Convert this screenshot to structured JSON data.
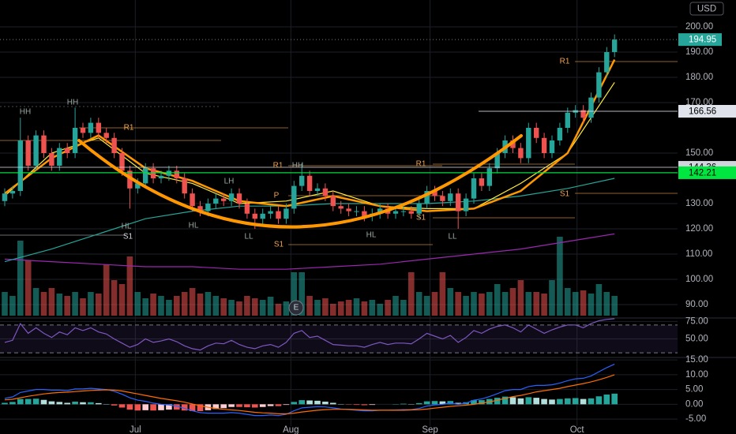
{
  "chart_data": {
    "type": "candlestick",
    "currency": "USD",
    "open": [
      131,
      134,
      135,
      155,
      145,
      157,
      150,
      145,
      152,
      150,
      160,
      158,
      162,
      158,
      156,
      150,
      143,
      136,
      138,
      144,
      140,
      141,
      143,
      140,
      134,
      129,
      127,
      130,
      132,
      131,
      134,
      130,
      126,
      124,
      126,
      127,
      124,
      128,
      137,
      141,
      135,
      136,
      133,
      129,
      128,
      127,
      127,
      125,
      126,
      128,
      126,
      127,
      127,
      126,
      130,
      135,
      133,
      131,
      134,
      127,
      132,
      140,
      137,
      144,
      150,
      155,
      152,
      148,
      160,
      156,
      150,
      155,
      160,
      166,
      167,
      164,
      172,
      182,
      190
    ],
    "high": [
      136,
      137,
      164,
      157,
      159,
      159,
      152,
      154,
      154,
      168,
      162,
      164,
      164,
      160,
      158,
      152,
      145,
      140,
      146,
      146,
      143,
      145,
      145,
      142,
      136,
      131,
      132,
      134,
      134,
      136,
      136,
      132,
      128,
      128,
      129,
      129,
      130,
      139,
      146,
      143,
      138,
      138,
      135,
      131,
      130,
      129,
      129,
      128,
      130,
      130,
      129,
      129,
      129,
      132,
      137,
      137,
      135,
      136,
      136,
      134,
      142,
      142,
      146,
      152,
      157,
      157,
      154,
      162,
      162,
      158,
      157,
      162,
      168,
      169,
      169,
      174,
      184,
      192,
      197
    ],
    "low": [
      129,
      132,
      133,
      143,
      143,
      148,
      143,
      143,
      148,
      148,
      156,
      156,
      156,
      154,
      148,
      141,
      128,
      134,
      136,
      138,
      138,
      139,
      138,
      132,
      127,
      125,
      125,
      128,
      129,
      129,
      128,
      124,
      120,
      122,
      124,
      122,
      122,
      126,
      135,
      133,
      133,
      131,
      127,
      126,
      125,
      125,
      123,
      123,
      124,
      124,
      124,
      125,
      124,
      124,
      128,
      131,
      129,
      129,
      120,
      125,
      130,
      135,
      135,
      142,
      148,
      150,
      146,
      146,
      154,
      148,
      148,
      153,
      158,
      164,
      162,
      162,
      170,
      180,
      188
    ],
    "close": [
      134,
      135,
      155,
      145,
      157,
      150,
      145,
      152,
      150,
      160,
      158,
      162,
      158,
      156,
      150,
      143,
      136,
      138,
      144,
      140,
      141,
      143,
      140,
      134,
      129,
      127,
      130,
      132,
      131,
      134,
      130,
      126,
      124,
      126,
      127,
      124,
      128,
      137,
      141,
      135,
      136,
      133,
      129,
      128,
      127,
      127,
      125,
      126,
      128,
      126,
      127,
      127,
      126,
      130,
      135,
      133,
      131,
      134,
      127,
      132,
      140,
      137,
      144,
      150,
      155,
      152,
      148,
      160,
      156,
      150,
      155,
      160,
      166,
      167,
      164,
      172,
      182,
      190,
      194.95
    ],
    "volume": [
      30,
      25,
      95,
      70,
      35,
      30,
      35,
      28,
      25,
      30,
      22,
      30,
      28,
      65,
      45,
      40,
      75,
      30,
      22,
      28,
      25,
      20,
      25,
      30,
      35,
      28,
      30,
      25,
      22,
      20,
      18,
      25,
      22,
      20,
      24,
      15,
      18,
      55,
      55,
      25,
      20,
      22,
      15,
      18,
      20,
      22,
      18,
      20,
      15,
      20,
      25,
      20,
      55,
      30,
      25,
      30,
      55,
      35,
      30,
      25,
      30,
      28,
      30,
      40,
      30,
      35,
      45,
      30,
      30,
      28,
      45,
      100,
      35,
      30,
      32,
      28,
      40,
      30,
      25
    ],
    "candle_colors": {
      "up": "#26a69a",
      "down": "#ef5350"
    },
    "ylim": [
      85,
      210
    ],
    "yticks": [
      {
        "value": 200,
        "label": "200.00"
      },
      {
        "value": 190,
        "label": "190.00"
      },
      {
        "value": 180,
        "label": "180.00"
      },
      {
        "value": 170,
        "label": "170.00"
      },
      {
        "value": 150,
        "label": "150.00"
      },
      {
        "value": 130,
        "label": "130.00"
      },
      {
        "value": 120,
        "label": "120.00"
      },
      {
        "value": 110,
        "label": "110.00"
      },
      {
        "value": 100,
        "label": "100.00"
      },
      {
        "value": 90,
        "label": "90.00"
      }
    ],
    "xticks": [
      {
        "value": 16.7,
        "label": "Jul"
      },
      {
        "value": 36.6,
        "label": "Aug"
      },
      {
        "value": 54.4,
        "label": "Sep"
      },
      {
        "value": 73.2,
        "label": "Oct"
      }
    ],
    "levels": [
      {
        "value": 166.56,
        "color": "#e0e3eb"
      },
      {
        "value": 144.36,
        "color": "#d1d4dc"
      },
      {
        "value": 142.21,
        "color": "#00e640"
      }
    ],
    "moving_averages": [
      {
        "color": "#9c27b0",
        "x": [
          0,
          6,
          12,
          18,
          24,
          30,
          36,
          42,
          48,
          54,
          60,
          66,
          72,
          78
        ],
        "values": [
          108,
          107,
          106,
          105,
          105,
          104,
          104,
          105,
          106,
          108,
          110,
          112,
          115,
          118
        ]
      },
      {
        "color": "#26a69a",
        "x": [
          0,
          6,
          12,
          18,
          24,
          30,
          36,
          42,
          48,
          54,
          60,
          66,
          72,
          78
        ],
        "values": [
          107,
          112,
          118,
          124,
          127,
          129,
          129,
          130,
          130,
          130,
          131,
          133,
          136,
          140
        ]
      },
      {
        "color": "#ffeb3b",
        "x": [
          0,
          6,
          12,
          18,
          24,
          30,
          36,
          42,
          48,
          54,
          60,
          66,
          72,
          78
        ],
        "values": [
          133,
          150,
          156,
          142,
          138,
          130,
          131,
          135,
          129,
          128,
          128,
          138,
          150,
          178
        ]
      },
      {
        "color": "#ff9800",
        "x": [
          0,
          6,
          12,
          18,
          24,
          30,
          36,
          42,
          48,
          54,
          60,
          66,
          72,
          78
        ],
        "values": [
          134,
          148,
          157,
          144,
          139,
          131,
          129,
          133,
          129,
          127,
          128,
          135,
          150,
          187
        ]
      }
    ],
    "annotations": [
      "HH",
      "HH",
      "HL",
      "HL",
      "LH",
      "LL",
      "HH",
      "HL",
      "LL",
      "R1",
      "R1",
      "P",
      "S1",
      "S1",
      "R1",
      "S1",
      "S1",
      "R1",
      "E"
    ],
    "rsi": {
      "color": "#7e57c2",
      "ylim": [
        20,
        80
      ],
      "band": [
        30,
        70
      ],
      "yticks": [
        {
          "value": 75,
          "label": "75.00"
        },
        {
          "value": 50,
          "label": "50.00"
        }
      ],
      "values": [
        45,
        48,
        72,
        58,
        66,
        58,
        52,
        60,
        56,
        66,
        62,
        66,
        60,
        57,
        50,
        44,
        38,
        42,
        50,
        45,
        47,
        50,
        46,
        40,
        36,
        34,
        40,
        44,
        43,
        48,
        42,
        38,
        36,
        40,
        42,
        38,
        45,
        58,
        62,
        52,
        54,
        48,
        42,
        41,
        40,
        40,
        38,
        42,
        45,
        42,
        44,
        44,
        43,
        50,
        58,
        54,
        50,
        55,
        45,
        52,
        62,
        58,
        64,
        68,
        70,
        66,
        60,
        70,
        64,
        58,
        63,
        67,
        70,
        70,
        66,
        72,
        76,
        78,
        79
      ]
    },
    "macd": {
      "ylim": [
        -7,
        16
      ],
      "macd_color": "#2962ff",
      "signal_color": "#ff6d00",
      "yticks": [
        {
          "value": 15,
          "label": "15.00"
        },
        {
          "value": 10,
          "label": "10.00"
        },
        {
          "value": 5,
          "label": "5.00"
        },
        {
          "value": 0,
          "label": "0.00"
        },
        {
          "value": -5,
          "label": "-5.00"
        }
      ],
      "macd": [
        2,
        2.5,
        4,
        4.5,
        5,
        5,
        4.8,
        4.8,
        4.6,
        5.2,
        5.2,
        5.4,
        5.2,
        5,
        4.4,
        3.4,
        2.2,
        1.4,
        1,
        0.4,
        0,
        -0.2,
        -0.6,
        -1.4,
        -2.2,
        -2.8,
        -3,
        -3,
        -3,
        -2.8,
        -3,
        -3.4,
        -3.8,
        -3.8,
        -3.6,
        -3.8,
        -3.4,
        -2.2,
        -1.2,
        -1,
        -0.8,
        -0.9,
        -1.2,
        -1.6,
        -1.8,
        -2,
        -2.2,
        -2.2,
        -2,
        -2,
        -1.9,
        -1.8,
        -1.8,
        -1.4,
        -0.6,
        -0.2,
        0,
        0.4,
        0,
        0.4,
        1.4,
        1.8,
        2.6,
        3.6,
        4.6,
        5,
        5,
        6,
        6.4,
        6.4,
        6.6,
        7.2,
        8,
        8.6,
        8.8,
        9.6,
        11,
        12.4,
        13.6
      ],
      "signal": [
        1.5,
        1.7,
        2.2,
        2.7,
        3.1,
        3.5,
        3.8,
        4,
        4.1,
        4.3,
        4.5,
        4.7,
        4.8,
        4.9,
        4.8,
        4.5,
        4,
        3.5,
        3,
        2.5,
        2,
        1.6,
        1.2,
        0.7,
        0.1,
        -0.5,
        -1,
        -1.4,
        -1.7,
        -1.9,
        -2.1,
        -2.4,
        -2.7,
        -2.9,
        -3,
        -3.2,
        -3.2,
        -3,
        -2.6,
        -2.3,
        -2,
        -1.8,
        -1.7,
        -1.7,
        -1.7,
        -1.8,
        -1.9,
        -2,
        -2,
        -2,
        -2,
        -2,
        -1.9,
        -1.8,
        -1.6,
        -1.3,
        -1,
        -0.7,
        -0.5,
        -0.3,
        0,
        0.4,
        0.8,
        1.4,
        2,
        2.6,
        3,
        3.6,
        4.2,
        4.6,
        5,
        5.4,
        6,
        6.5,
        7,
        7.6,
        8.3,
        9.1,
        10
      ],
      "histogram": [
        0.5,
        0.8,
        1.8,
        1.8,
        1.9,
        1.5,
        1,
        0.8,
        0.5,
        0.9,
        0.7,
        0.7,
        0.4,
        0.1,
        -0.4,
        -1.1,
        -1.8,
        -2.1,
        -2,
        -2.1,
        -2,
        -1.8,
        -1.8,
        -2.1,
        -2.3,
        -2.3,
        -2,
        -1.6,
        -1.3,
        -0.9,
        -0.9,
        -1,
        -1.1,
        -0.9,
        -0.6,
        -0.6,
        -0.2,
        0.8,
        1.4,
        1.3,
        1.2,
        0.9,
        0.5,
        0.1,
        -0.1,
        -0.2,
        -0.3,
        -0.2,
        0,
        0,
        0.1,
        0.2,
        0.1,
        0.4,
        1,
        1.1,
        1,
        1.1,
        0.5,
        0.7,
        1.4,
        1.4,
        1.8,
        2.2,
        2.6,
        2.4,
        2,
        2.4,
        2.2,
        1.8,
        1.6,
        1.8,
        2,
        2.1,
        1.8,
        2,
        2.7,
        3.3,
        3.6
      ]
    }
  }
}
